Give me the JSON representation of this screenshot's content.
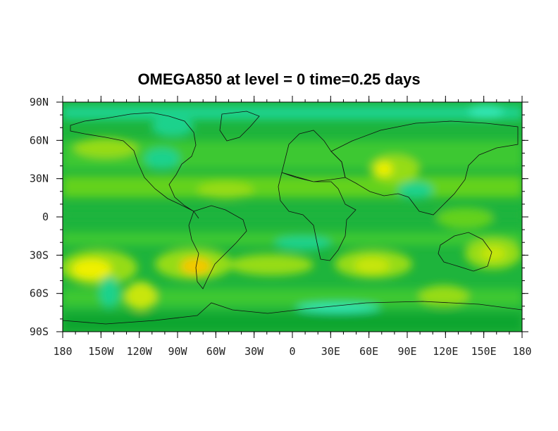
{
  "title": "OMEGA850 at level = 0 time=0.25 days",
  "axes": {
    "x_ticks": [
      {
        "value": -180,
        "label": "180"
      },
      {
        "value": -150,
        "label": "150W"
      },
      {
        "value": -120,
        "label": "120W"
      },
      {
        "value": -90,
        "label": "90W"
      },
      {
        "value": -60,
        "label": "60W"
      },
      {
        "value": -30,
        "label": "30W"
      },
      {
        "value": 0,
        "label": "0"
      },
      {
        "value": 30,
        "label": "30E"
      },
      {
        "value": 60,
        "label": "60E"
      },
      {
        "value": 90,
        "label": "90E"
      },
      {
        "value": 120,
        "label": "120E"
      },
      {
        "value": 150,
        "label": "150E"
      },
      {
        "value": 180,
        "label": "180"
      }
    ],
    "y_ticks": [
      {
        "value": 90,
        "label": "90N"
      },
      {
        "value": 60,
        "label": "60N"
      },
      {
        "value": 30,
        "label": "30N"
      },
      {
        "value": 0,
        "label": "0"
      },
      {
        "value": -30,
        "label": "30S"
      },
      {
        "value": -60,
        "label": "60S"
      },
      {
        "value": -90,
        "label": "90S"
      }
    ],
    "xlim": [
      -180,
      180
    ],
    "ylim": [
      -90,
      90
    ]
  },
  "colors": {
    "background_field": "#1eb43c",
    "level_colors": [
      "#0aa52d",
      "#1eb43c",
      "#3cc832",
      "#64d21e",
      "#96dc14",
      "#c8e60a",
      "#f0f000",
      "#f5c800",
      "#1ed28c",
      "#32e6b4"
    ],
    "coastline": "#111111"
  }
}
